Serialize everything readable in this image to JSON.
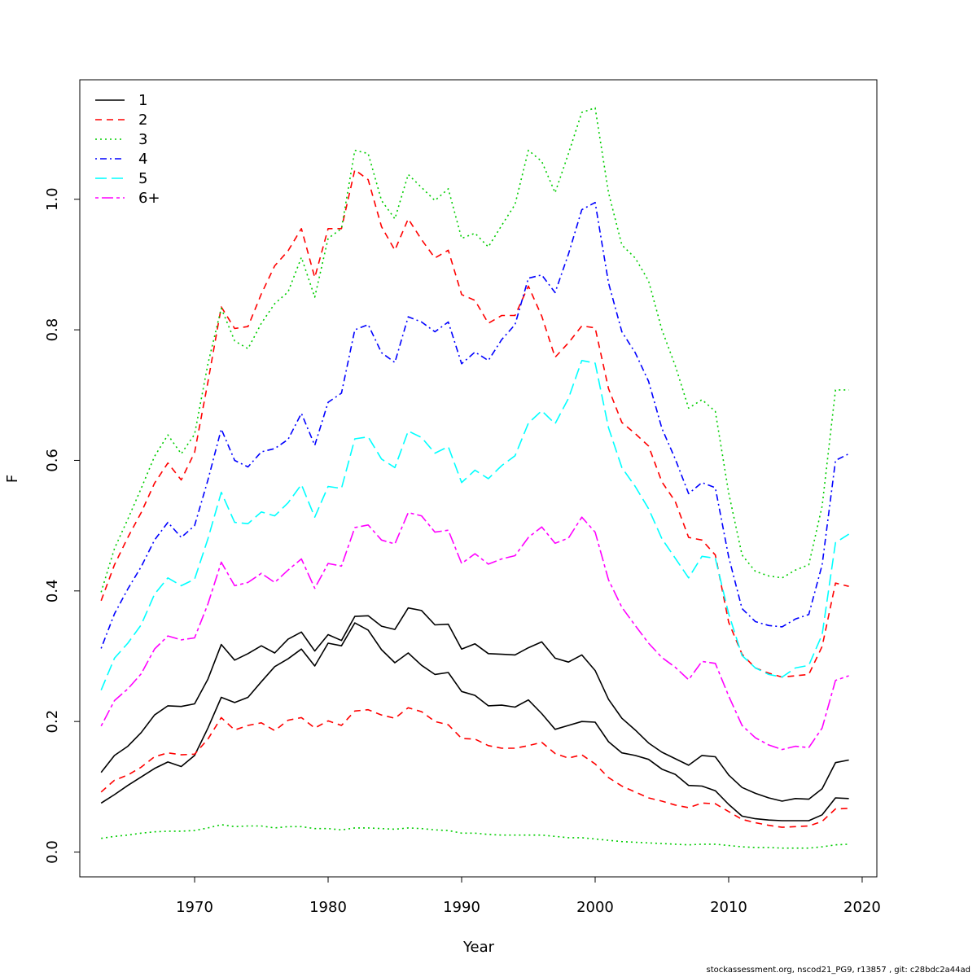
{
  "chart_data": {
    "type": "line",
    "xlabel": "Year",
    "ylabel": "F",
    "xlim": [
      1961.4,
      2021.1
    ],
    "ylim": [
      -0.038,
      1.183
    ],
    "xticks": [
      1970,
      1980,
      1990,
      2000,
      2010,
      2020
    ],
    "yticks": [
      0.0,
      0.2,
      0.4,
      0.6,
      0.8,
      1.0
    ],
    "ytick_labels": [
      "0.0",
      "0.2",
      "0.4",
      "0.6",
      "0.8",
      "1.0"
    ],
    "grid": false,
    "legend_position": "top-left",
    "x": [
      1963,
      1964,
      1965,
      1966,
      1967,
      1968,
      1969,
      1970,
      1971,
      1972,
      1973,
      1974,
      1975,
      1976,
      1977,
      1978,
      1979,
      1980,
      1981,
      1982,
      1983,
      1984,
      1985,
      1986,
      1987,
      1988,
      1989,
      1990,
      1991,
      1992,
      1993,
      1994,
      1995,
      1996,
      1997,
      1998,
      1999,
      2000,
      2001,
      2002,
      2003,
      2004,
      2005,
      2006,
      2007,
      2008,
      2009,
      2010,
      2011,
      2012,
      2013,
      2014,
      2015,
      2016,
      2017,
      2018,
      2019
    ],
    "series": [
      {
        "name": "1",
        "color": "#000000",
        "dash": "solid",
        "values": [
          0.122,
          0.148,
          0.162,
          0.183,
          0.21,
          0.224,
          0.223,
          0.227,
          0.265,
          0.318,
          0.294,
          0.304,
          0.316,
          0.305,
          0.326,
          0.337,
          0.308,
          0.333,
          0.324,
          0.361,
          0.362,
          0.346,
          0.341,
          0.374,
          0.37,
          0.348,
          0.349,
          0.311,
          0.319,
          0.304,
          0.303,
          0.302,
          0.313,
          0.322,
          0.297,
          0.291,
          0.302,
          0.278,
          0.234,
          0.205,
          0.187,
          0.167,
          0.153,
          0.143,
          0.133,
          0.148,
          0.146,
          0.118,
          0.099,
          0.09,
          0.083,
          0.078,
          0.082,
          0.081,
          0.097,
          0.137,
          0.141
        ]
      },
      {
        "name": "1 (lower band)",
        "color": "#000000",
        "dash": "solid",
        "values": [
          0.075,
          0.088,
          0.102,
          0.115,
          0.128,
          0.138,
          0.131,
          0.148,
          0.19,
          0.237,
          0.229,
          0.237,
          0.261,
          0.284,
          0.296,
          0.311,
          0.285,
          0.32,
          0.316,
          0.351,
          0.34,
          0.31,
          0.29,
          0.305,
          0.286,
          0.272,
          0.275,
          0.246,
          0.24,
          0.224,
          0.225,
          0.222,
          0.233,
          0.212,
          0.188,
          0.194,
          0.2,
          0.199,
          0.169,
          0.152,
          0.148,
          0.142,
          0.127,
          0.119,
          0.102,
          0.101,
          0.094,
          0.073,
          0.055,
          0.051,
          0.049,
          0.048,
          0.048,
          0.048,
          0.057,
          0.083,
          0.082
        ]
      },
      {
        "name": "2",
        "color": "#ff0000",
        "dash": "dashed",
        "values": [
          0.385,
          0.44,
          0.482,
          0.52,
          0.565,
          0.596,
          0.57,
          0.612,
          0.72,
          0.835,
          0.802,
          0.805,
          0.855,
          0.898,
          0.921,
          0.955,
          0.88,
          0.955,
          0.955,
          1.045,
          1.03,
          0.958,
          0.922,
          0.97,
          0.938,
          0.91,
          0.922,
          0.854,
          0.845,
          0.81,
          0.822,
          0.822,
          0.867,
          0.821,
          0.758,
          0.78,
          0.806,
          0.803,
          0.71,
          0.658,
          0.641,
          0.622,
          0.567,
          0.537,
          0.482,
          0.478,
          0.455,
          0.352,
          0.303,
          0.282,
          0.274,
          0.268,
          0.27,
          0.272,
          0.315,
          0.412,
          0.407
        ]
      },
      {
        "name": "2 (lower band)",
        "color": "#ff0000",
        "dash": "dashed",
        "values": [
          0.092,
          0.11,
          0.118,
          0.13,
          0.146,
          0.152,
          0.149,
          0.15,
          0.173,
          0.206,
          0.187,
          0.194,
          0.198,
          0.186,
          0.202,
          0.206,
          0.19,
          0.201,
          0.194,
          0.216,
          0.218,
          0.21,
          0.205,
          0.221,
          0.215,
          0.2,
          0.195,
          0.174,
          0.173,
          0.163,
          0.159,
          0.159,
          0.163,
          0.168,
          0.151,
          0.144,
          0.149,
          0.135,
          0.114,
          0.101,
          0.092,
          0.083,
          0.078,
          0.072,
          0.068,
          0.075,
          0.074,
          0.062,
          0.05,
          0.045,
          0.041,
          0.038,
          0.039,
          0.04,
          0.047,
          0.066,
          0.067
        ]
      },
      {
        "name": "3",
        "color": "#00cd00",
        "dash": "dotted",
        "values": [
          0.398,
          0.465,
          0.51,
          0.557,
          0.606,
          0.639,
          0.61,
          0.64,
          0.748,
          0.833,
          0.783,
          0.771,
          0.81,
          0.84,
          0.858,
          0.911,
          0.85,
          0.94,
          0.955,
          1.075,
          1.07,
          0.998,
          0.97,
          1.038,
          1.018,
          0.998,
          1.016,
          0.94,
          0.948,
          0.927,
          0.96,
          0.992,
          1.075,
          1.058,
          1.01,
          1.07,
          1.133,
          1.14,
          1.01,
          0.93,
          0.91,
          0.875,
          0.8,
          0.745,
          0.68,
          0.693,
          0.675,
          0.55,
          0.455,
          0.43,
          0.423,
          0.42,
          0.432,
          0.44,
          0.53,
          0.708,
          0.708
        ]
      },
      {
        "name": "3 (lower band)",
        "color": "#00cd00",
        "dash": "dotted",
        "values": [
          0.021,
          0.024,
          0.026,
          0.029,
          0.031,
          0.032,
          0.032,
          0.033,
          0.037,
          0.042,
          0.039,
          0.04,
          0.04,
          0.037,
          0.039,
          0.039,
          0.036,
          0.036,
          0.034,
          0.037,
          0.037,
          0.036,
          0.035,
          0.037,
          0.036,
          0.034,
          0.033,
          0.029,
          0.029,
          0.027,
          0.026,
          0.026,
          0.026,
          0.026,
          0.024,
          0.022,
          0.022,
          0.02,
          0.018,
          0.016,
          0.015,
          0.014,
          0.013,
          0.012,
          0.011,
          0.012,
          0.012,
          0.01,
          0.008,
          0.007,
          0.007,
          0.006,
          0.006,
          0.006,
          0.008,
          0.011,
          0.012
        ]
      },
      {
        "name": "4",
        "color": "#0000ff",
        "dash": "dotdash",
        "values": [
          0.312,
          0.365,
          0.403,
          0.437,
          0.478,
          0.505,
          0.482,
          0.5,
          0.57,
          0.648,
          0.6,
          0.59,
          0.613,
          0.618,
          0.632,
          0.672,
          0.623,
          0.689,
          0.703,
          0.8,
          0.808,
          0.765,
          0.75,
          0.82,
          0.812,
          0.797,
          0.812,
          0.748,
          0.766,
          0.753,
          0.785,
          0.808,
          0.879,
          0.884,
          0.857,
          0.916,
          0.984,
          0.995,
          0.872,
          0.797,
          0.765,
          0.721,
          0.649,
          0.602,
          0.549,
          0.566,
          0.558,
          0.452,
          0.373,
          0.353,
          0.347,
          0.345,
          0.357,
          0.364,
          0.44,
          0.6,
          0.61
        ]
      },
      {
        "name": "5",
        "color": "#00ffff",
        "dash": "longdash",
        "values": [
          0.248,
          0.297,
          0.32,
          0.348,
          0.395,
          0.42,
          0.408,
          0.418,
          0.48,
          0.551,
          0.505,
          0.503,
          0.521,
          0.515,
          0.535,
          0.563,
          0.513,
          0.56,
          0.557,
          0.633,
          0.636,
          0.602,
          0.589,
          0.645,
          0.635,
          0.611,
          0.621,
          0.566,
          0.585,
          0.572,
          0.592,
          0.607,
          0.657,
          0.676,
          0.656,
          0.695,
          0.753,
          0.749,
          0.65,
          0.589,
          0.56,
          0.526,
          0.48,
          0.45,
          0.42,
          0.453,
          0.45,
          0.365,
          0.301,
          0.282,
          0.272,
          0.268,
          0.282,
          0.286,
          0.333,
          0.474,
          0.487
        ]
      },
      {
        "name": "6+",
        "color": "#ff00ff",
        "dash": "twodash",
        "values": [
          0.193,
          0.232,
          0.25,
          0.273,
          0.311,
          0.331,
          0.325,
          0.328,
          0.38,
          0.444,
          0.408,
          0.413,
          0.427,
          0.413,
          0.432,
          0.449,
          0.404,
          0.442,
          0.438,
          0.497,
          0.501,
          0.478,
          0.472,
          0.52,
          0.515,
          0.49,
          0.493,
          0.442,
          0.457,
          0.441,
          0.449,
          0.454,
          0.482,
          0.498,
          0.473,
          0.481,
          0.513,
          0.49,
          0.417,
          0.375,
          0.347,
          0.32,
          0.298,
          0.283,
          0.264,
          0.292,
          0.289,
          0.239,
          0.194,
          0.175,
          0.164,
          0.157,
          0.162,
          0.16,
          0.19,
          0.263,
          0.27
        ]
      }
    ],
    "legend": [
      "1",
      "2",
      "3",
      "4",
      "5",
      "6+"
    ]
  },
  "footer_text": "stockassessment.org, nscod21_PG9, r13857 , git: c28bdc2a44ad"
}
